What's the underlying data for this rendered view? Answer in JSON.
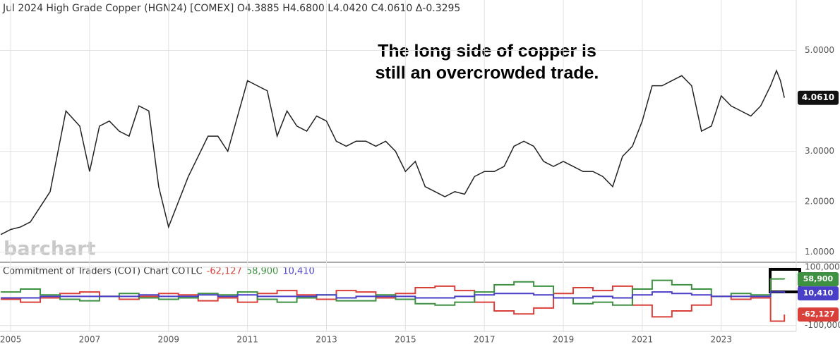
{
  "chart_data": [
    {
      "type": "line",
      "title": "Jul 2024 High Grade Copper (HGN24) [COMEX] O4.3885 H4.6800 L4.0420 C4.0610 Δ-0.3295",
      "annotation": [
        "The long side of copper is",
        "still an overcrowded trade."
      ],
      "watermark": "barchart",
      "color": "#222222",
      "x": [
        2004.75,
        2005,
        2005.25,
        2005.5,
        2005.75,
        2006,
        2006.4,
        2006.75,
        2007,
        2007.25,
        2007.5,
        2007.75,
        2008,
        2008.25,
        2008.5,
        2008.75,
        2009,
        2009.25,
        2009.5,
        2009.75,
        2010,
        2010.25,
        2010.5,
        2010.75,
        2011,
        2011.25,
        2011.5,
        2011.75,
        2012,
        2012.25,
        2012.5,
        2012.75,
        2013,
        2013.25,
        2013.5,
        2013.75,
        2014,
        2014.25,
        2014.5,
        2014.75,
        2015,
        2015.25,
        2015.5,
        2015.75,
        2016,
        2016.25,
        2016.5,
        2016.75,
        2017,
        2017.25,
        2017.5,
        2017.75,
        2018,
        2018.25,
        2018.5,
        2018.75,
        2019,
        2019.25,
        2019.5,
        2019.75,
        2020,
        2020.25,
        2020.5,
        2020.75,
        2021,
        2021.25,
        2021.5,
        2021.75,
        2022,
        2022.25,
        2022.5,
        2022.75,
        2023,
        2023.25,
        2023.5,
        2023.75,
        2024,
        2024.25,
        2024.4,
        2024.5,
        2024.6
      ],
      "values": [
        1.35,
        1.45,
        1.5,
        1.6,
        1.9,
        2.2,
        3.8,
        3.5,
        2.6,
        3.5,
        3.6,
        3.4,
        3.3,
        3.9,
        3.8,
        2.3,
        1.5,
        2.0,
        2.5,
        2.9,
        3.3,
        3.3,
        3.0,
        3.7,
        4.4,
        4.3,
        4.2,
        3.3,
        3.8,
        3.5,
        3.4,
        3.7,
        3.6,
        3.2,
        3.1,
        3.2,
        3.2,
        3.1,
        3.2,
        3.0,
        2.6,
        2.8,
        2.3,
        2.2,
        2.1,
        2.2,
        2.15,
        2.5,
        2.6,
        2.6,
        2.7,
        3.1,
        3.2,
        3.1,
        2.8,
        2.7,
        2.8,
        2.7,
        2.6,
        2.6,
        2.5,
        2.3,
        2.9,
        3.1,
        3.6,
        4.3,
        4.3,
        4.4,
        4.5,
        4.3,
        3.4,
        3.5,
        4.1,
        3.9,
        3.8,
        3.7,
        3.9,
        4.3,
        4.6,
        4.4,
        4.061
      ],
      "value_labels": [
        null,
        null,
        null,
        null,
        null,
        null,
        null,
        null,
        null,
        null,
        null,
        null,
        null,
        null,
        null,
        null,
        null,
        null,
        null,
        null,
        null,
        null,
        null,
        null,
        null,
        null,
        null,
        null,
        null,
        null,
        null,
        null,
        null,
        null,
        null,
        null,
        null,
        null,
        null,
        null,
        null,
        null,
        null,
        null,
        null,
        null,
        null,
        null,
        null,
        null,
        null,
        null,
        null,
        null,
        null,
        null,
        null,
        null,
        null,
        null,
        null,
        null,
        null,
        null,
        null,
        null,
        null,
        null,
        null,
        null,
        null,
        null,
        null,
        null,
        null,
        null,
        null,
        null,
        null,
        null,
        "4.0610"
      ],
      "xlim": [
        2004.73,
        2024.9
      ],
      "xticks": [
        2005,
        2007,
        2009,
        2011,
        2013,
        2015,
        2017,
        2019,
        2021,
        2023
      ],
      "ylim": [
        0.8,
        6.0
      ],
      "yticks": [
        {
          "value": 1,
          "label": "1.0000"
        },
        {
          "value": 2,
          "label": "2.0000"
        },
        {
          "value": 3,
          "label": "3.0000"
        },
        {
          "value": 5,
          "label": "5.0000"
        }
      ],
      "grid": true
    },
    {
      "type": "step",
      "title": "Commitment of Traders (COT) Chart COTLC",
      "x": [
        2004.75,
        2005.25,
        2005.75,
        2006.25,
        2006.75,
        2007.25,
        2007.75,
        2008.25,
        2008.75,
        2009.25,
        2009.75,
        2010.25,
        2010.75,
        2011.25,
        2011.75,
        2012.25,
        2012.75,
        2013.25,
        2013.75,
        2014.25,
        2014.75,
        2015.25,
        2015.75,
        2016.25,
        2016.75,
        2017.25,
        2017.75,
        2018.25,
        2018.75,
        2019.25,
        2019.75,
        2020.25,
        2020.75,
        2021.25,
        2021.75,
        2022.25,
        2022.75,
        2023.25,
        2023.75,
        2024.25,
        2024.6
      ],
      "series": [
        {
          "color": "#d9403a",
          "values": [
            -10000,
            -20000,
            -5000,
            10000,
            15000,
            0,
            -10000,
            0,
            10000,
            5000,
            -15000,
            -5000,
            -20000,
            10000,
            20000,
            5000,
            -10000,
            20000,
            15000,
            -5000,
            10000,
            30000,
            35000,
            20000,
            -20000,
            -50000,
            -60000,
            -40000,
            10000,
            30000,
            20000,
            35000,
            -30000,
            -70000,
            -50000,
            -30000,
            0,
            -10000,
            -5000,
            -85000,
            -62127
          ],
          "value_labels": [
            null,
            null,
            null,
            null,
            null,
            null,
            null,
            null,
            null,
            null,
            null,
            null,
            null,
            null,
            null,
            null,
            null,
            null,
            null,
            null,
            null,
            null,
            null,
            null,
            null,
            null,
            null,
            null,
            null,
            null,
            null,
            null,
            null,
            null,
            null,
            null,
            null,
            null,
            null,
            null,
            "-62,127"
          ]
        },
        {
          "color": "#3d9140",
          "values": [
            15000,
            25000,
            5000,
            -10000,
            -15000,
            0,
            10000,
            -5000,
            -10000,
            -5000,
            10000,
            5000,
            15000,
            -10000,
            -20000,
            -5000,
            5000,
            -15000,
            -15000,
            5000,
            -10000,
            -25000,
            -30000,
            -20000,
            15000,
            40000,
            50000,
            35000,
            -5000,
            -25000,
            -20000,
            -30000,
            25000,
            55000,
            40000,
            25000,
            0,
            10000,
            5000,
            60000,
            58900
          ],
          "value_labels": [
            null,
            null,
            null,
            null,
            null,
            null,
            null,
            null,
            null,
            null,
            null,
            null,
            null,
            null,
            null,
            null,
            null,
            null,
            null,
            null,
            null,
            null,
            null,
            null,
            null,
            null,
            null,
            null,
            null,
            null,
            null,
            null,
            null,
            null,
            null,
            null,
            null,
            null,
            null,
            null,
            "58,900"
          ]
        },
        {
          "color": "#4a3fc7",
          "values": [
            -5000,
            -5000,
            0,
            0,
            0,
            0,
            0,
            5000,
            0,
            0,
            5000,
            0,
            5000,
            0,
            0,
            0,
            5000,
            -5000,
            0,
            0,
            0,
            -5000,
            -5000,
            0,
            5000,
            10000,
            10000,
            5000,
            -5000,
            -5000,
            0,
            -5000,
            5000,
            15000,
            10000,
            5000,
            0,
            0,
            0,
            15000,
            10410
          ],
          "value_labels": [
            null,
            null,
            null,
            null,
            null,
            null,
            null,
            null,
            null,
            null,
            null,
            null,
            null,
            null,
            null,
            null,
            null,
            null,
            null,
            null,
            null,
            null,
            null,
            null,
            null,
            null,
            null,
            null,
            null,
            null,
            null,
            null,
            null,
            null,
            null,
            null,
            null,
            null,
            null,
            null,
            "10,410"
          ]
        }
      ],
      "xlim": [
        2004.73,
        2024.9
      ],
      "ylim": [
        -120000,
        117000
      ],
      "yticks": [
        {
          "value": 100000,
          "label": "100,000"
        },
        {
          "value": -100000,
          "label": "-100,000"
        }
      ],
      "grid": true
    }
  ]
}
